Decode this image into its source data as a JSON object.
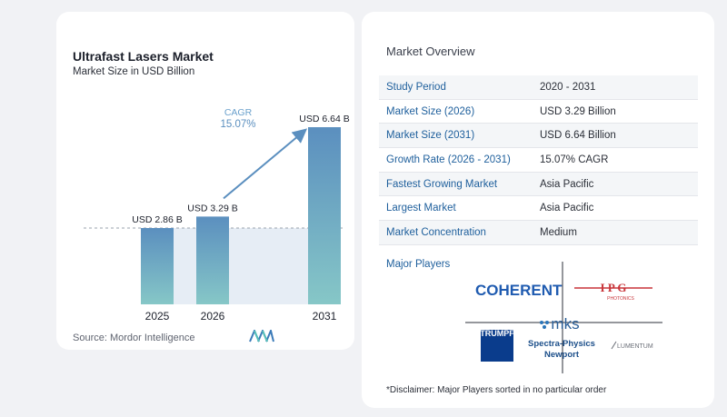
{
  "chart_data": {
    "type": "bar",
    "title": "Ultrafast Lasers Market",
    "subtitle": "Market Size in USD Billion",
    "categories": [
      "2025",
      "2026",
      "2031"
    ],
    "values": [
      2.86,
      3.29,
      6.64
    ],
    "data_labels": [
      "USD 2.86 B",
      "USD 3.29 B",
      "USD 6.64 B"
    ],
    "ylim": [
      0,
      7
    ],
    "cagr_label": "CAGR",
    "cagr_value": "15.07%",
    "colors": {
      "bar_top": "#5b8fbf",
      "bar_bottom": "#86c7c7",
      "arrow": "#5b8fbf",
      "band": "#e6edf5"
    }
  },
  "source": "Source:  Mordor Intelligence",
  "overview": {
    "title": "Market Overview",
    "rows": [
      {
        "label": "Study Period",
        "value": "2020 - 2031"
      },
      {
        "label": "Market Size (2026)",
        "value": "USD 3.29 Billion"
      },
      {
        "label": "Market Size (2031)",
        "value": "USD 6.64 Billion"
      },
      {
        "label": "Growth Rate (2026 - 2031)",
        "value": "15.07% CAGR"
      },
      {
        "label": "Fastest Growing Market",
        "value": "Asia Pacific"
      },
      {
        "label": "Largest Market",
        "value": "Asia Pacific"
      },
      {
        "label": "Market Concentration",
        "value": "Medium"
      }
    ]
  },
  "players": {
    "title": "Major Players",
    "coherent": "COHERENT",
    "ipg": "I P G",
    "ipg_sub": "PHOTONICS",
    "trumpf": "TRUMPF",
    "mks": "mks",
    "spectra": "Spectra-Physics",
    "newport": "Newport",
    "lumentum": "LUMENTUM"
  },
  "disclaimer": "*Disclaimer: Major Players sorted in no particular order"
}
